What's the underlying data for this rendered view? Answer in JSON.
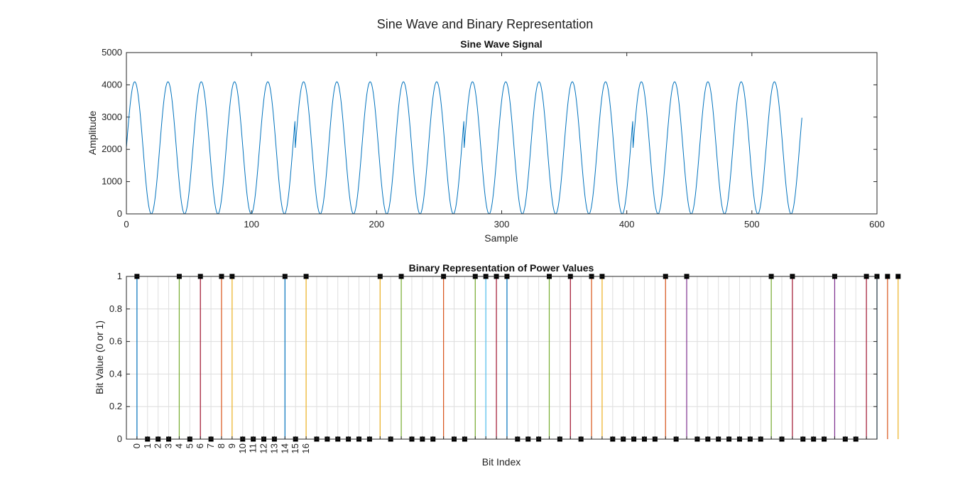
{
  "figure": {
    "title": "Sine Wave and Binary Representation"
  },
  "chart_data": [
    {
      "type": "line",
      "title": "Sine Wave Signal",
      "xlabel": "Sample",
      "ylabel": "Amplitude",
      "xlim": [
        0,
        600
      ],
      "ylim": [
        0,
        5000
      ],
      "xticks": [
        "0",
        "100",
        "200",
        "300",
        "400",
        "500",
        "600"
      ],
      "yticks": [
        "0",
        "1000",
        "2000",
        "3000",
        "4000",
        "5000"
      ],
      "grid": false,
      "color": "#0072BD",
      "series": [
        {
          "x_start": 0,
          "x_end": 540,
          "offset": 2048,
          "amplitude": 2047,
          "period": 26.6,
          "phase_start": 0,
          "restarts": [
            135,
            270,
            405
          ]
        }
      ]
    },
    {
      "type": "stem",
      "title": "Binary Representation of Power Values",
      "xlabel": "Bit Index",
      "ylabel": "Bit Value (0 or 1)",
      "xlim": [
        -1,
        70
      ],
      "ylim": [
        0,
        1
      ],
      "xticks": [
        "0",
        "1",
        "2",
        "3",
        "4",
        "5",
        "6",
        "7",
        "8",
        "9",
        "10",
        "11",
        "12",
        "13",
        "14",
        "15",
        "16"
      ],
      "yticks": [
        "0",
        "0.2",
        "0.4",
        "0.6",
        "0.8",
        "1"
      ],
      "grid": true,
      "marker": "square",
      "colors": [
        "#0072BD",
        "#D95319",
        "#EDB120",
        "#7E2F8E",
        "#77AC30",
        "#4DBEEE",
        "#A2142F"
      ],
      "bits": [
        1,
        0,
        0,
        0,
        1,
        0,
        1,
        0,
        1,
        1,
        0,
        0,
        0,
        0,
        1,
        0,
        1,
        0,
        0,
        0,
        0,
        0,
        0,
        1,
        0,
        1,
        0,
        0,
        0,
        1,
        0,
        0,
        1,
        1,
        1,
        1,
        0,
        0,
        0,
        1,
        0,
        1,
        0,
        1,
        1,
        0,
        0,
        0,
        0,
        0,
        1,
        0,
        1,
        0,
        0,
        0,
        0,
        0,
        0,
        0,
        1,
        0,
        1,
        0,
        0,
        0,
        1,
        0,
        0,
        1,
        1,
        1,
        1
      ]
    }
  ]
}
